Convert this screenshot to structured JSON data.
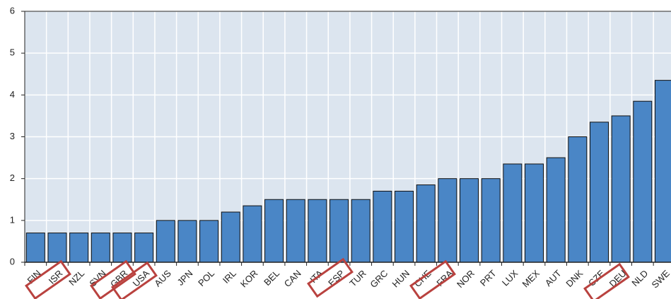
{
  "chart_data": {
    "type": "bar",
    "categories": [
      "FIN",
      "ISR",
      "NZL",
      "SVN",
      "GBR",
      "USA",
      "AUS",
      "JPN",
      "POL",
      "IRL",
      "KOR",
      "BEL",
      "CAN",
      "ITA",
      "ESP",
      "TUR",
      "GRC",
      "HUN",
      "CHE",
      "FRA",
      "NOR",
      "PRT",
      "LUX",
      "MEX",
      "AUT",
      "DNK",
      "CZE",
      "DEU",
      "NLD",
      "SWE"
    ],
    "values": [
      0.7,
      0.7,
      0.7,
      0.7,
      0.7,
      0.7,
      1,
      1,
      1,
      1.2,
      1.35,
      1.5,
      1.5,
      1.5,
      1.5,
      1.5,
      1.7,
      1.7,
      1.85,
      2,
      2,
      2,
      2.35,
      2.35,
      2.5,
      3,
      3.35,
      3.5,
      3.85,
      4.35
    ],
    "color": "#4a86c6",
    "ylim": [
      0,
      6
    ],
    "yticks": [
      0,
      1,
      2,
      3,
      4,
      5,
      6
    ],
    "grid": true
  }
}
